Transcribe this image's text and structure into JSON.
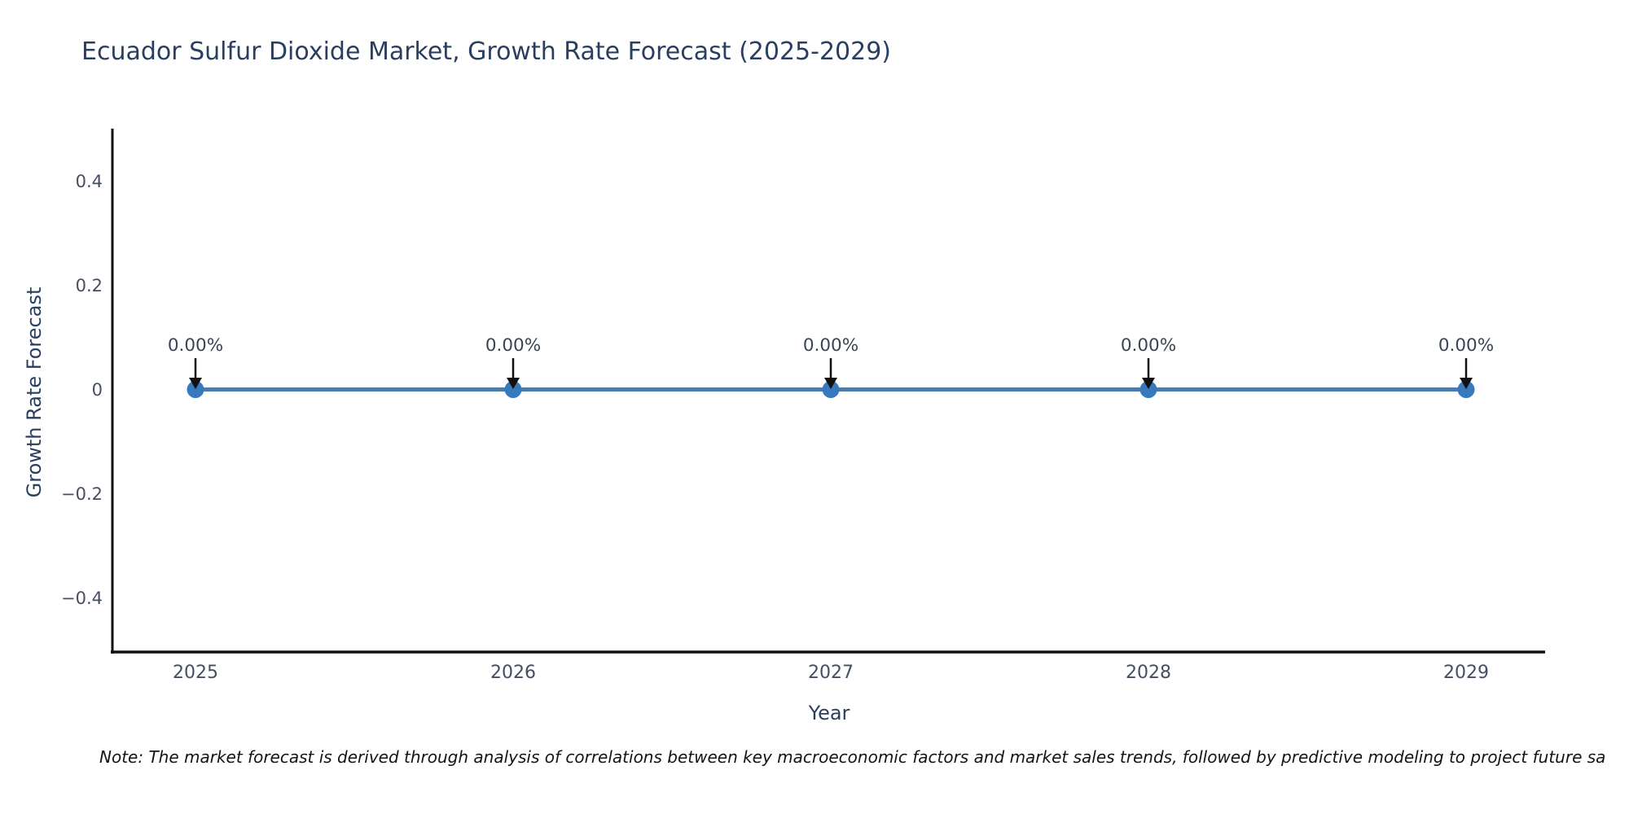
{
  "title": "Ecuador Sulfur Dioxide Market, Growth Rate Forecast (2025-2029)",
  "note": "Note: The market forecast is derived through analysis of correlations between key macroeconomic factors and market sales trends, followed by predictive modeling to project future sa",
  "chart_data": {
    "type": "line",
    "title": "Ecuador Sulfur Dioxide Market, Growth Rate Forecast (2025-2029)",
    "xlabel": "Year",
    "ylabel": "Growth Rate Forecast",
    "categories": [
      "2025",
      "2026",
      "2027",
      "2028",
      "2029"
    ],
    "values": [
      0,
      0,
      0,
      0,
      0
    ],
    "point_labels": [
      "0.00%",
      "0.00%",
      "0.00%",
      "0.00%",
      "0.00%"
    ],
    "ytick_values": [
      0.4,
      0.2,
      0,
      -0.2,
      -0.4
    ],
    "ytick_labels": [
      "0.4",
      "0.2",
      "0",
      "−0.2",
      "−0.4"
    ],
    "ylim": [
      -0.5,
      0.5
    ],
    "grid": false,
    "legend": "none",
    "colors": {
      "line": "#4e7ca8",
      "marker": "#3679bc",
      "axis": "#111111",
      "title": "#2a3f5f",
      "tick_label": "#444f63",
      "annotation": "#3b4554",
      "arrow": "#111111",
      "background": "#ffffff"
    }
  }
}
